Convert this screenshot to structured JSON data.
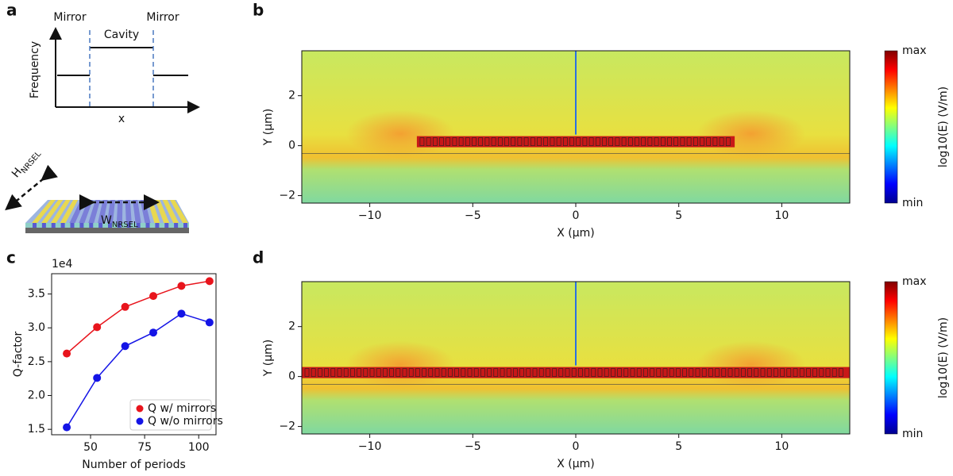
{
  "panel_labels": [
    "a",
    "b",
    "c",
    "d"
  ],
  "schematic": {
    "mirror_left": "Mirror",
    "mirror_right": "Mirror",
    "cavity": "Cavity",
    "y_label": "Frequency",
    "x_label": "x",
    "h_label": "H",
    "h_sub": "NRSEL",
    "w_label": "W",
    "w_sub": "NRSEL"
  },
  "chart_data": [
    {
      "type": "line",
      "panel": "c",
      "x_label": "Number of periods",
      "y_label": "Q-factor",
      "y_scale_label": "1e4",
      "x": [
        39,
        53,
        66,
        79,
        92,
        105
      ],
      "series": [
        {
          "name": "Q w/ mirrors",
          "color": "#e8141c",
          "values": [
            2.62,
            3.01,
            3.31,
            3.47,
            3.62,
            3.69
          ]
        },
        {
          "name": "Q w/o mirrors",
          "color": "#1414e6",
          "values": [
            1.53,
            2.26,
            2.73,
            2.93,
            3.21,
            3.08
          ]
        }
      ],
      "xlim": [
        32,
        108
      ],
      "xticks": [
        50,
        75,
        100
      ],
      "ylim": [
        1.42,
        3.8
      ],
      "yticks": [
        1.5,
        {
          "value": 2,
          "label": "2.0"
        },
        2.5,
        {
          "value": 3,
          "label": "3.0"
        },
        3.5
      ],
      "legend": "lower right"
    },
    {
      "type": "heatmap",
      "panel": "b",
      "x_label": "X (μm)",
      "y_label": "Y (μm)",
      "xlim": [
        -13.3,
        13.3
      ],
      "xticks": [
        {
          "value": -10,
          "label": "−10"
        },
        {
          "value": -5,
          "label": "−5"
        },
        0,
        5,
        10
      ],
      "ylim": [
        -2.3,
        3.8
      ],
      "yticks": [
        {
          "value": -2,
          "label": "−2"
        },
        0,
        2
      ],
      "colorbar": {
        "label": "log10(E) (V/m)",
        "max_label": "max",
        "min_label": "min",
        "colormap": "jet"
      }
    },
    {
      "type": "heatmap",
      "panel": "d",
      "x_label": "X (μm)",
      "y_label": "Y (μm)",
      "xlim": [
        -13.3,
        13.3
      ],
      "xticks": [
        {
          "value": -10,
          "label": "−10"
        },
        {
          "value": -5,
          "label": "−5"
        },
        0,
        5,
        10
      ],
      "ylim": [
        -2.3,
        3.8
      ],
      "yticks": [
        {
          "value": -2,
          "label": "−2"
        },
        0,
        2
      ],
      "colorbar": {
        "label": "log10(E) (V/m)",
        "max_label": "max",
        "min_label": "min",
        "colormap": "jet"
      }
    }
  ]
}
